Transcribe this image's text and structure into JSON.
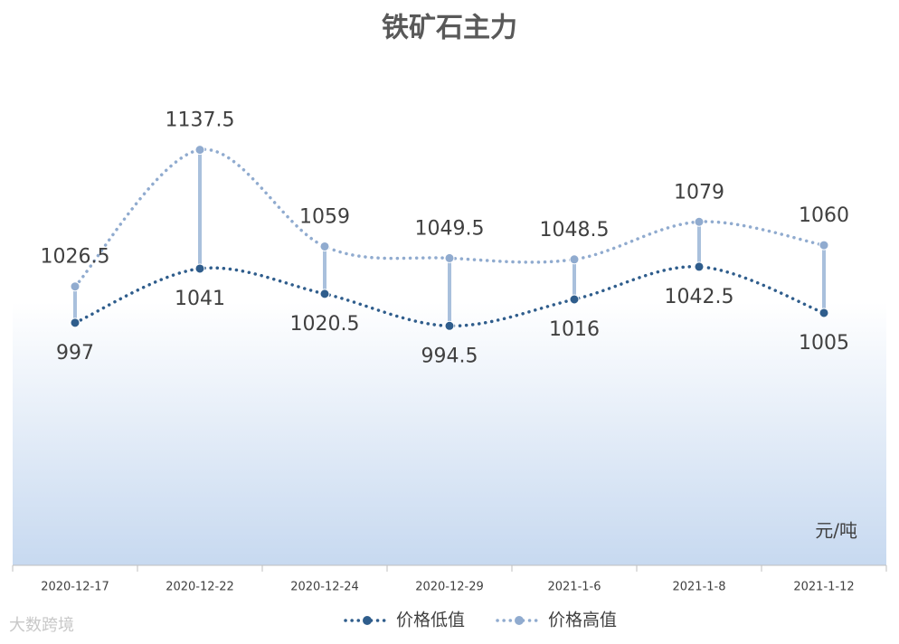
{
  "chart_data": {
    "type": "line",
    "title": "铁矿石主力",
    "categories": [
      "2020-12-17",
      "2020-12-22",
      "2020-12-24",
      "2020-12-29",
      "2021-1-6",
      "2021-1-8",
      "2021-1-12"
    ],
    "series": [
      {
        "name": "价格低值",
        "color": "#2f5d8c",
        "values": [
          997,
          1041,
          1020.5,
          994.5,
          1016,
          1042.5,
          1005
        ]
      },
      {
        "name": "价格高值",
        "color": "#90abcf",
        "values": [
          1026.5,
          1137.5,
          1059,
          1049.5,
          1048.5,
          1079,
          1060
        ]
      }
    ],
    "ylim": [
      800,
      1160
    ],
    "unit_label": "元/吨",
    "high_low_lines": true,
    "high_low_color": "#a9c0dc",
    "legend": "bottom",
    "watermark": "大数跨境"
  }
}
